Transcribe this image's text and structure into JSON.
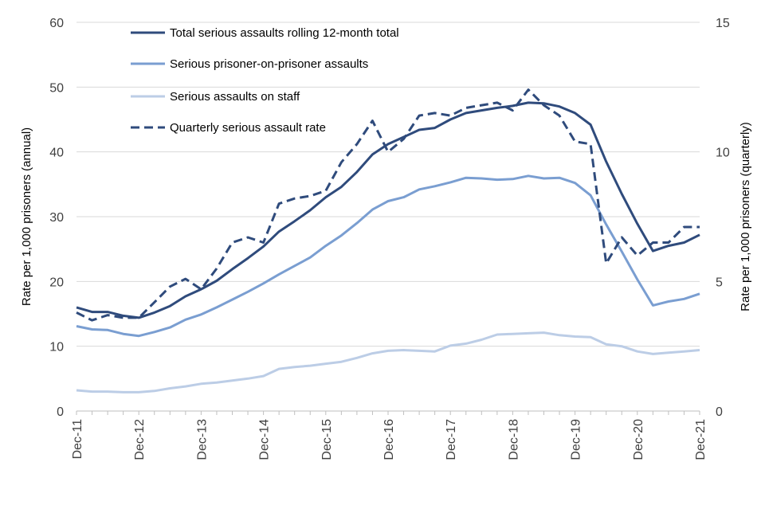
{
  "chart_data": {
    "type": "line",
    "x_tick_labels": [
      "Dec-11",
      "Dec-12",
      "Dec-13",
      "Dec-14",
      "Dec-15",
      "Dec-16",
      "Dec-17",
      "Dec-18",
      "Dec-19",
      "Dec-20",
      "Dec-21"
    ],
    "y_left": {
      "label": "Rate per 1,000 prisoners (annual)",
      "range": [
        0,
        60
      ],
      "ticks": [
        0,
        10,
        20,
        30,
        40,
        50,
        60
      ]
    },
    "y_right": {
      "label": "Rate per 1,000 prisoners (quarterly)",
      "range": [
        0,
        15
      ],
      "ticks": [
        0,
        5,
        10,
        15
      ]
    },
    "grid": "horizontal",
    "legend_position": "top-left",
    "series": [
      {
        "name": "Total serious assaults rolling 12-month total",
        "color": "#2f4b7c",
        "dash": "solid",
        "axis": "left",
        "values": [
          16.0,
          15.3,
          15.3,
          14.7,
          14.4,
          15.2,
          16.2,
          17.7,
          18.8,
          20.1,
          21.9,
          23.6,
          25.4,
          27.7,
          29.3,
          31.0,
          33.0,
          34.6,
          36.9,
          39.6,
          41.2,
          42.3,
          43.4,
          43.7,
          45.0,
          46.0,
          46.4,
          46.8,
          47.1,
          47.6,
          47.5,
          47.0,
          46.0,
          44.2,
          38.5,
          33.5,
          28.9,
          24.7,
          25.5,
          26.0,
          27.2
        ]
      },
      {
        "name": "Serious prisoner-on-prisoner assaults",
        "color": "#7a9ed1",
        "dash": "solid",
        "axis": "left",
        "values": [
          13.1,
          12.6,
          12.5,
          11.9,
          11.6,
          12.2,
          12.9,
          14.1,
          14.9,
          16.0,
          17.2,
          18.4,
          19.7,
          21.1,
          22.4,
          23.7,
          25.5,
          27.1,
          29.0,
          31.1,
          32.4,
          33.0,
          34.2,
          34.7,
          35.3,
          36.0,
          35.9,
          35.7,
          35.8,
          36.3,
          35.9,
          36.0,
          35.2,
          33.3,
          28.8,
          24.6,
          20.3,
          16.3,
          16.9,
          17.3,
          18.1
        ]
      },
      {
        "name": "Serious assaults on staff",
        "color": "#bccde6",
        "dash": "solid",
        "axis": "left",
        "values": [
          3.2,
          3.0,
          3.0,
          2.9,
          2.9,
          3.1,
          3.5,
          3.8,
          4.2,
          4.4,
          4.7,
          5.0,
          5.4,
          6.5,
          6.8,
          7.0,
          7.3,
          7.6,
          8.2,
          8.9,
          9.3,
          9.4,
          9.3,
          9.2,
          10.1,
          10.4,
          11.0,
          11.8,
          11.9,
          12.0,
          12.1,
          11.7,
          11.5,
          11.4,
          10.3,
          10.0,
          9.2,
          8.8,
          9.0,
          9.2,
          9.4
        ]
      },
      {
        "name": "Quarterly serious assault rate",
        "color": "#2f4b7c",
        "dash": "dashed",
        "axis": "right",
        "values": [
          3.8,
          3.5,
          3.7,
          3.6,
          3.6,
          4.2,
          4.8,
          5.1,
          4.7,
          5.5,
          6.5,
          6.7,
          6.5,
          8.0,
          8.2,
          8.3,
          8.5,
          9.6,
          10.3,
          11.2,
          10.0,
          10.5,
          11.4,
          11.5,
          11.4,
          11.7,
          11.8,
          11.9,
          11.6,
          12.4,
          11.8,
          11.4,
          10.4,
          10.3,
          5.7,
          6.7,
          6.0,
          6.5,
          6.5,
          7.1,
          7.1
        ]
      }
    ]
  }
}
